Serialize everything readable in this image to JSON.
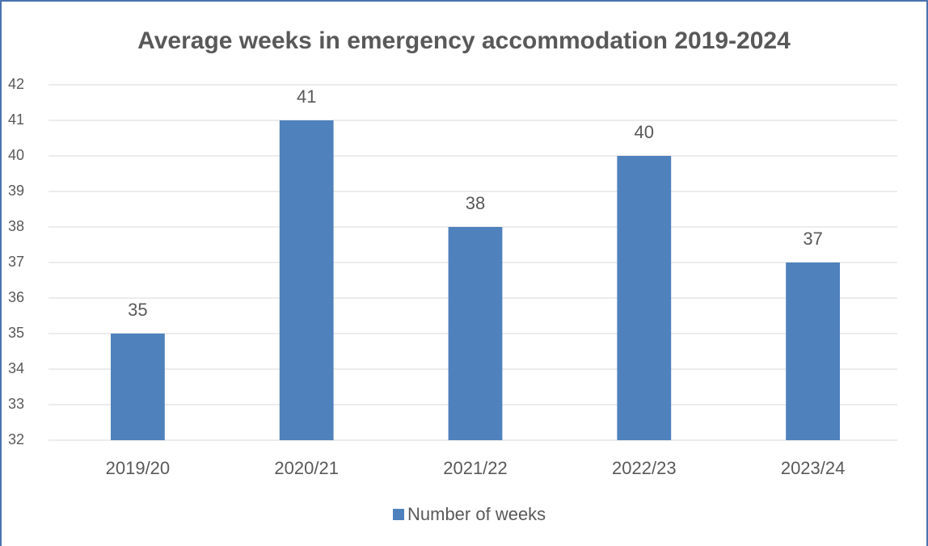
{
  "chart_data": {
    "type": "bar",
    "title": "Average weeks in emergency accommodation 2019-2024",
    "categories": [
      "2019/20",
      "2020/21",
      "2021/22",
      "2022/23",
      "2023/24"
    ],
    "series": [
      {
        "name": "Number of weeks",
        "color": "#4f81bd",
        "values": [
          35,
          41,
          38,
          40,
          37
        ]
      }
    ],
    "ylim": [
      32,
      42
    ],
    "yticks": [
      32,
      33,
      34,
      35,
      36,
      37,
      38,
      39,
      40,
      41,
      42
    ],
    "grid": true,
    "legend": "bottom"
  }
}
